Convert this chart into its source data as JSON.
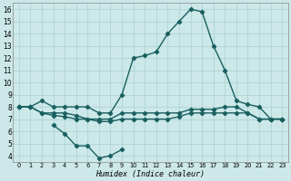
{
  "xlabel": "Humidex (Indice chaleur)",
  "x": [
    0,
    1,
    2,
    3,
    4,
    5,
    6,
    7,
    8,
    9,
    10,
    11,
    12,
    13,
    14,
    15,
    16,
    17,
    18,
    19,
    20,
    21,
    22,
    23
  ],
  "line1": [
    8.0,
    8.0,
    8.5,
    8.0,
    8.0,
    8.0,
    8.0,
    7.5,
    7.5,
    9.0,
    12.0,
    12.2,
    12.5,
    14.0,
    15.0,
    16.0,
    15.8,
    13.0,
    11.0,
    8.5,
    8.2,
    8.0,
    7.0,
    7.0
  ],
  "line2": [
    8.0,
    8.0,
    7.5,
    7.5,
    7.5,
    7.3,
    7.0,
    7.0,
    7.0,
    7.5,
    7.5,
    7.5,
    7.5,
    7.5,
    7.5,
    7.8,
    7.8,
    7.8,
    8.0,
    8.0,
    7.5,
    7.0,
    7.0,
    7.0
  ],
  "line3": [
    8.0,
    8.0,
    7.5,
    7.3,
    7.2,
    7.0,
    7.0,
    6.8,
    6.8,
    7.0,
    7.0,
    7.0,
    7.0,
    7.0,
    7.2,
    7.5,
    7.5,
    7.5,
    7.5,
    7.5,
    7.5,
    7.0,
    7.0,
    7.0
  ],
  "line4": [
    null,
    null,
    null,
    6.5,
    5.8,
    4.8,
    4.8,
    3.8,
    4.0,
    4.5,
    null,
    null,
    null,
    null,
    null,
    null,
    null,
    null,
    null,
    null,
    null,
    null,
    null,
    null
  ],
  "ylim": [
    3.5,
    16.5
  ],
  "yticks": [
    4,
    5,
    6,
    7,
    8,
    9,
    10,
    11,
    12,
    13,
    14,
    15,
    16
  ],
  "xlim": [
    -0.5,
    23.5
  ],
  "bg_color": "#cce8e8",
  "grid_color": "#aad0d0",
  "line_color": "#1a6060",
  "marker": "D",
  "markersize": 2.2,
  "linewidth": 1.0
}
